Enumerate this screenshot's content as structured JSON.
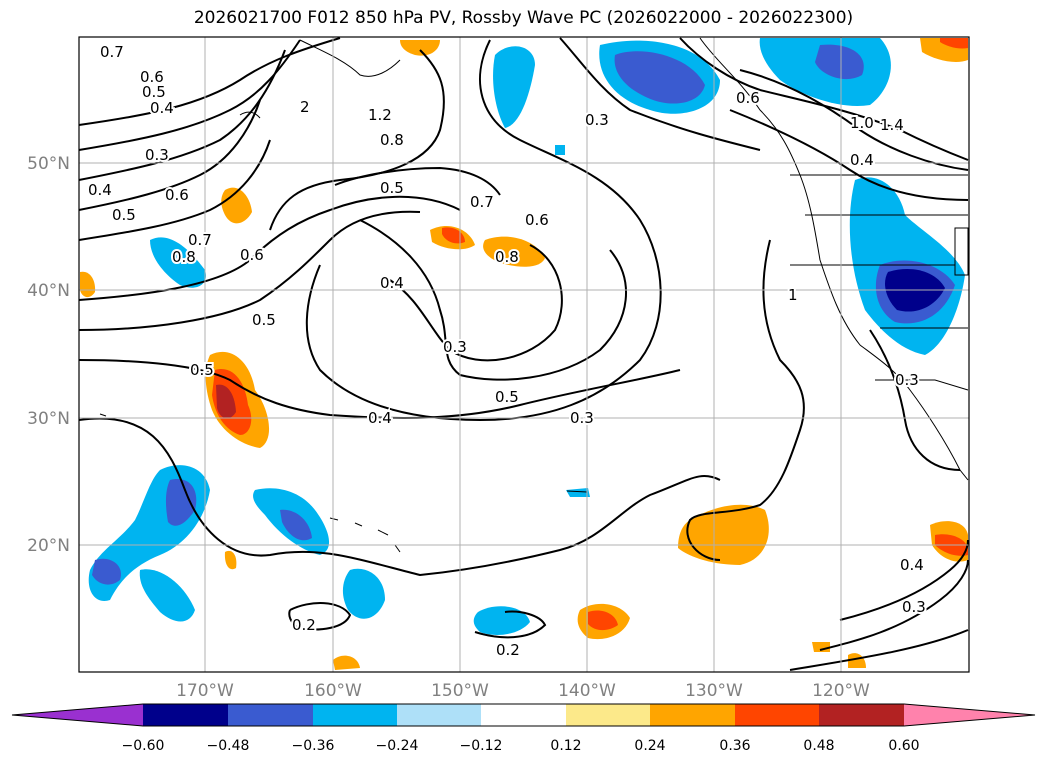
{
  "title": "2026021700 F012 850 hPa PV, Rossby Wave PC (2026022000 - 2026022300)",
  "lat_labels": [
    "50°N",
    "40°N",
    "30°N",
    "20°N"
  ],
  "lon_labels": [
    "170°W",
    "160°W",
    "150°W",
    "140°W",
    "130°W",
    "120°W"
  ],
  "colorbar": {
    "ticks": [
      "−0.60",
      "−0.48",
      "−0.36",
      "−0.24",
      "−0.12",
      "0.12",
      "0.24",
      "0.36",
      "0.48",
      "0.60"
    ],
    "colors": [
      "#9a30d0",
      "#00008b",
      "#3a5bd0",
      "#00b4f0",
      "#aee0f8",
      "#ffffff",
      "#fce98a",
      "#ffa500",
      "#ff4500",
      "#b22222",
      "#ff82ac"
    ]
  },
  "contour_labels": [
    "0.7",
    "0.6",
    "0.5",
    "0.4",
    "0.3",
    "1.2",
    "0.8",
    "0.5",
    "0.7",
    "0.6",
    "0.4",
    "0.8",
    "0.3",
    "0.5",
    "0.4",
    "0.3",
    "0.6",
    "0.3",
    "0.2",
    "0.2",
    "0.4",
    "0.3",
    "0.6",
    "1.0",
    "1.4",
    "0.4",
    "0.6",
    "0.5",
    "0.5",
    "0.4",
    "0.3",
    "0.7",
    "0.8",
    "0.5",
    "1",
    "2"
  ]
}
